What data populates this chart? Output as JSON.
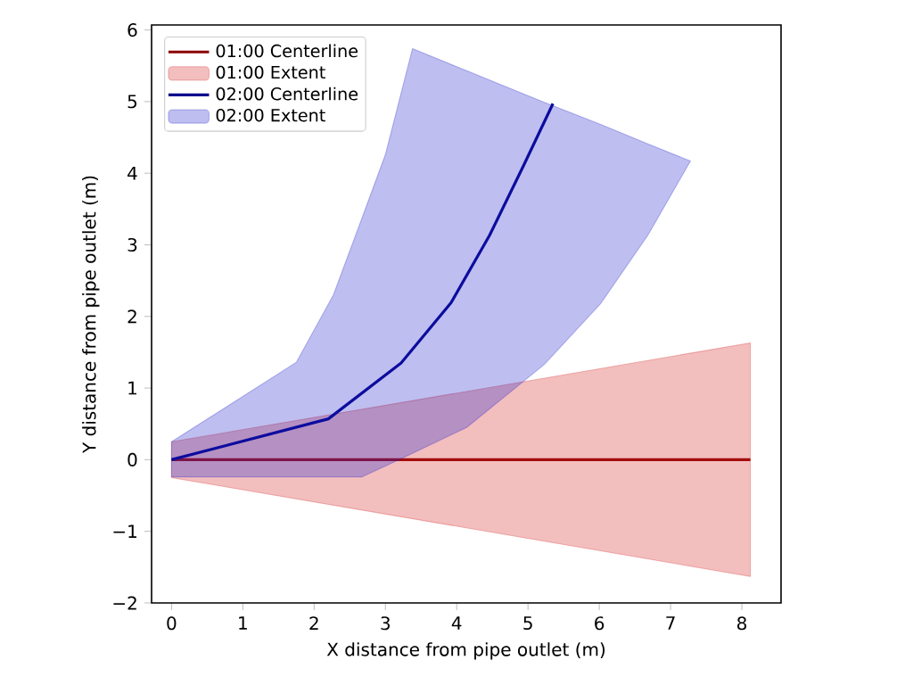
{
  "chart_data": {
    "type": "line",
    "xlabel": "X distance from pipe outlet (m)",
    "ylabel": "Y distance from pipe outlet (m)",
    "xlim": [
      -0.28,
      8.55
    ],
    "ylim": [
      -2,
      6.07
    ],
    "xticks": [
      0,
      1,
      2,
      3,
      4,
      5,
      6,
      7,
      8
    ],
    "yticks": [
      {
        "value": -2,
        "label": "−2"
      },
      {
        "value": -1,
        "label": "−1"
      },
      0,
      1,
      2,
      3,
      4,
      5,
      6
    ],
    "legend": "top left",
    "grid": false,
    "series": [
      {
        "name": "01:00 Centerline",
        "color": "#8b0000",
        "x": [
          0,
          8.12
        ],
        "values": [
          0,
          0
        ]
      },
      {
        "name": "01:00 Extent",
        "color": "#d62728",
        "x": [
          0,
          8.12
        ],
        "values": [
          null,
          null
        ],
        "lower": [
          -0.25,
          -1.63
        ],
        "upper": [
          0.25,
          1.63
        ]
      },
      {
        "name": "02:00 Centerline",
        "color": "#00008b",
        "x": [
          0,
          2.2,
          3.22,
          3.92,
          4.46,
          4.93,
          5.35
        ],
        "values": [
          0,
          0.57,
          1.35,
          2.19,
          3.13,
          4.09,
          4.97
        ]
      },
      {
        "name": "02:00 Extent",
        "color": "#2828cc",
        "x": [
          0,
          1.75,
          2.27,
          2.67,
          3.0,
          3.38,
          4.14,
          5.23,
          6.02,
          6.68,
          7.28
        ],
        "values": [
          null,
          null,
          null,
          null,
          null,
          null,
          null,
          null,
          null,
          null,
          null
        ],
        "lower": [
          -0.24,
          -0.24,
          -0.24,
          -0.24,
          -0.09,
          0.09,
          0.45,
          1.33,
          2.18,
          3.13,
          4.17
        ],
        "upper": [
          0.25,
          1.36,
          2.3,
          3.37,
          4.26,
          5.74,
          5.43,
          4.99,
          4.68,
          4.41,
          4.17
        ]
      }
    ]
  }
}
